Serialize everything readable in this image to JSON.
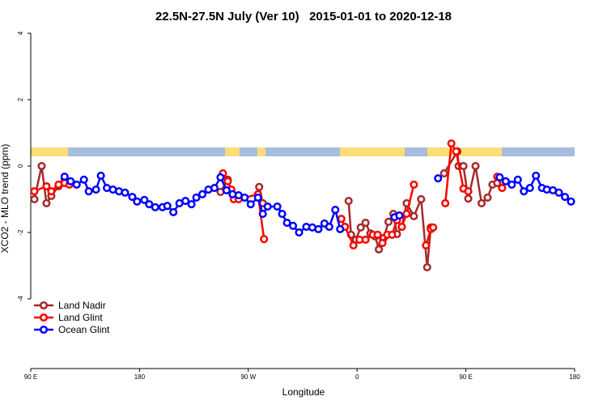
{
  "chart_data": {
    "type": "line",
    "title": "22.5N-27.5N July (Ver 10)   2015-01-01 to 2020-12-18",
    "x_label": "Longitude",
    "y_label": "XCO2 - MLO trend (ppm)",
    "xlim": [
      90,
      540
    ],
    "ylim": [
      -6.1,
      4.27
    ],
    "xticks": [
      {
        "value": 90,
        "label": "90 E"
      },
      180,
      {
        "value": 270,
        "label": "90 W"
      },
      {
        "value": 360,
        "label": "0"
      },
      {
        "value": 450,
        "label": "90 E"
      },
      {
        "value": 540,
        "label": "180"
      }
    ],
    "yticks": [
      -4,
      -2,
      0,
      2,
      4
    ],
    "legend": "bottom-left",
    "series": [
      {
        "name": "Land Nadir",
        "color": "#a52a2a",
        "x": [
          93,
          99,
          103,
          107,
          113,
          118,
          null,
          247,
          253,
          258,
          null,
          279,
          282,
          null,
          353,
          355,
          359,
          363,
          367,
          371,
          375,
          378,
          382,
          386,
          390,
          393,
          397,
          401,
          407,
          413,
          418,
          421,
          null,
          432,
          443,
          444,
          448,
          452,
          458,
          463,
          468,
          472,
          476
        ],
        "values": [
          -1.0,
          0.0,
          -1.12,
          -0.9,
          -0.61,
          -0.41,
          null,
          -0.78,
          -0.41,
          -0.95,
          null,
          -0.63,
          -1.12,
          null,
          -1.05,
          -2.07,
          -2.22,
          -1.85,
          -1.71,
          -2.03,
          -2.12,
          -2.51,
          -2.17,
          -1.68,
          -1.44,
          -2.05,
          -1.83,
          -1.12,
          -1.51,
          -1.0,
          -3.05,
          -1.85,
          null,
          -0.22,
          0.44,
          0.0,
          0.0,
          -0.98,
          0.0,
          -1.12,
          -0.95,
          -0.56,
          -0.51
        ]
      },
      {
        "name": "Land Glint",
        "color": "#ff0000",
        "x": [
          93,
          103,
          107,
          113,
          118,
          122,
          null,
          249,
          253,
          256,
          258,
          262,
          278,
          283,
          null,
          347,
          350,
          357,
          362,
          367,
          373,
          377,
          381,
          385,
          389,
          393,
          397,
          401,
          407,
          null,
          417,
          421,
          423,
          null,
          433,
          438,
          442,
          448,
          452,
          null,
          476,
          480
        ],
        "values": [
          -0.76,
          -0.61,
          -0.76,
          -0.56,
          -0.51,
          -0.56,
          null,
          -0.22,
          -0.46,
          -0.71,
          -1.0,
          -1.0,
          -0.85,
          -2.2,
          null,
          -1.59,
          -1.83,
          -2.39,
          -2.22,
          -2.22,
          -2.07,
          -2.07,
          -2.32,
          -2.07,
          -2.07,
          -1.63,
          -1.83,
          -1.44,
          -0.56,
          null,
          -2.39,
          -1.9,
          -1.85,
          null,
          -1.12,
          0.68,
          0.44,
          -0.68,
          -0.76,
          null,
          -0.32,
          -0.66
        ]
      },
      {
        "name": "Ocean Glint",
        "color": "#0000ff",
        "x": [
          118,
          123,
          128,
          134,
          138,
          144,
          148,
          153,
          158,
          163,
          168,
          174,
          178,
          184,
          188,
          193,
          199,
          203,
          208,
          213,
          218,
          223,
          227,
          232,
          237,
          242,
          247,
          252,
          257,
          262,
          267,
          272,
          278,
          282,
          286,
          294,
          298,
          302,
          307,
          312,
          318,
          323,
          328,
          333,
          337,
          342,
          346,
          null,
          391,
          395,
          null,
          427,
          null,
          478,
          483,
          488,
          493,
          498,
          503,
          508,
          513,
          517,
          522,
          527,
          532,
          537
        ],
        "values": [
          -0.32,
          -0.46,
          -0.56,
          -0.41,
          -0.76,
          -0.71,
          -0.29,
          -0.66,
          -0.71,
          -0.76,
          -0.8,
          -0.93,
          -1.07,
          -1.02,
          -1.15,
          -1.24,
          -1.24,
          -1.2,
          -1.39,
          -1.12,
          -1.05,
          -1.15,
          -0.95,
          -0.85,
          -0.71,
          -0.66,
          -0.34,
          -0.73,
          -0.85,
          -0.88,
          -0.95,
          -1.15,
          -0.95,
          -1.44,
          -1.22,
          -1.22,
          -1.44,
          -1.71,
          -1.8,
          -2.0,
          -1.83,
          -1.85,
          -1.9,
          -1.73,
          -1.83,
          -1.32,
          -1.9,
          null,
          -1.54,
          -1.49,
          null,
          -0.37,
          null,
          -0.34,
          -0.46,
          -0.56,
          -0.41,
          -0.76,
          -0.66,
          -0.29,
          -0.66,
          -0.71,
          -0.73,
          -0.8,
          -0.93,
          -1.07
        ]
      }
    ]
  }
}
